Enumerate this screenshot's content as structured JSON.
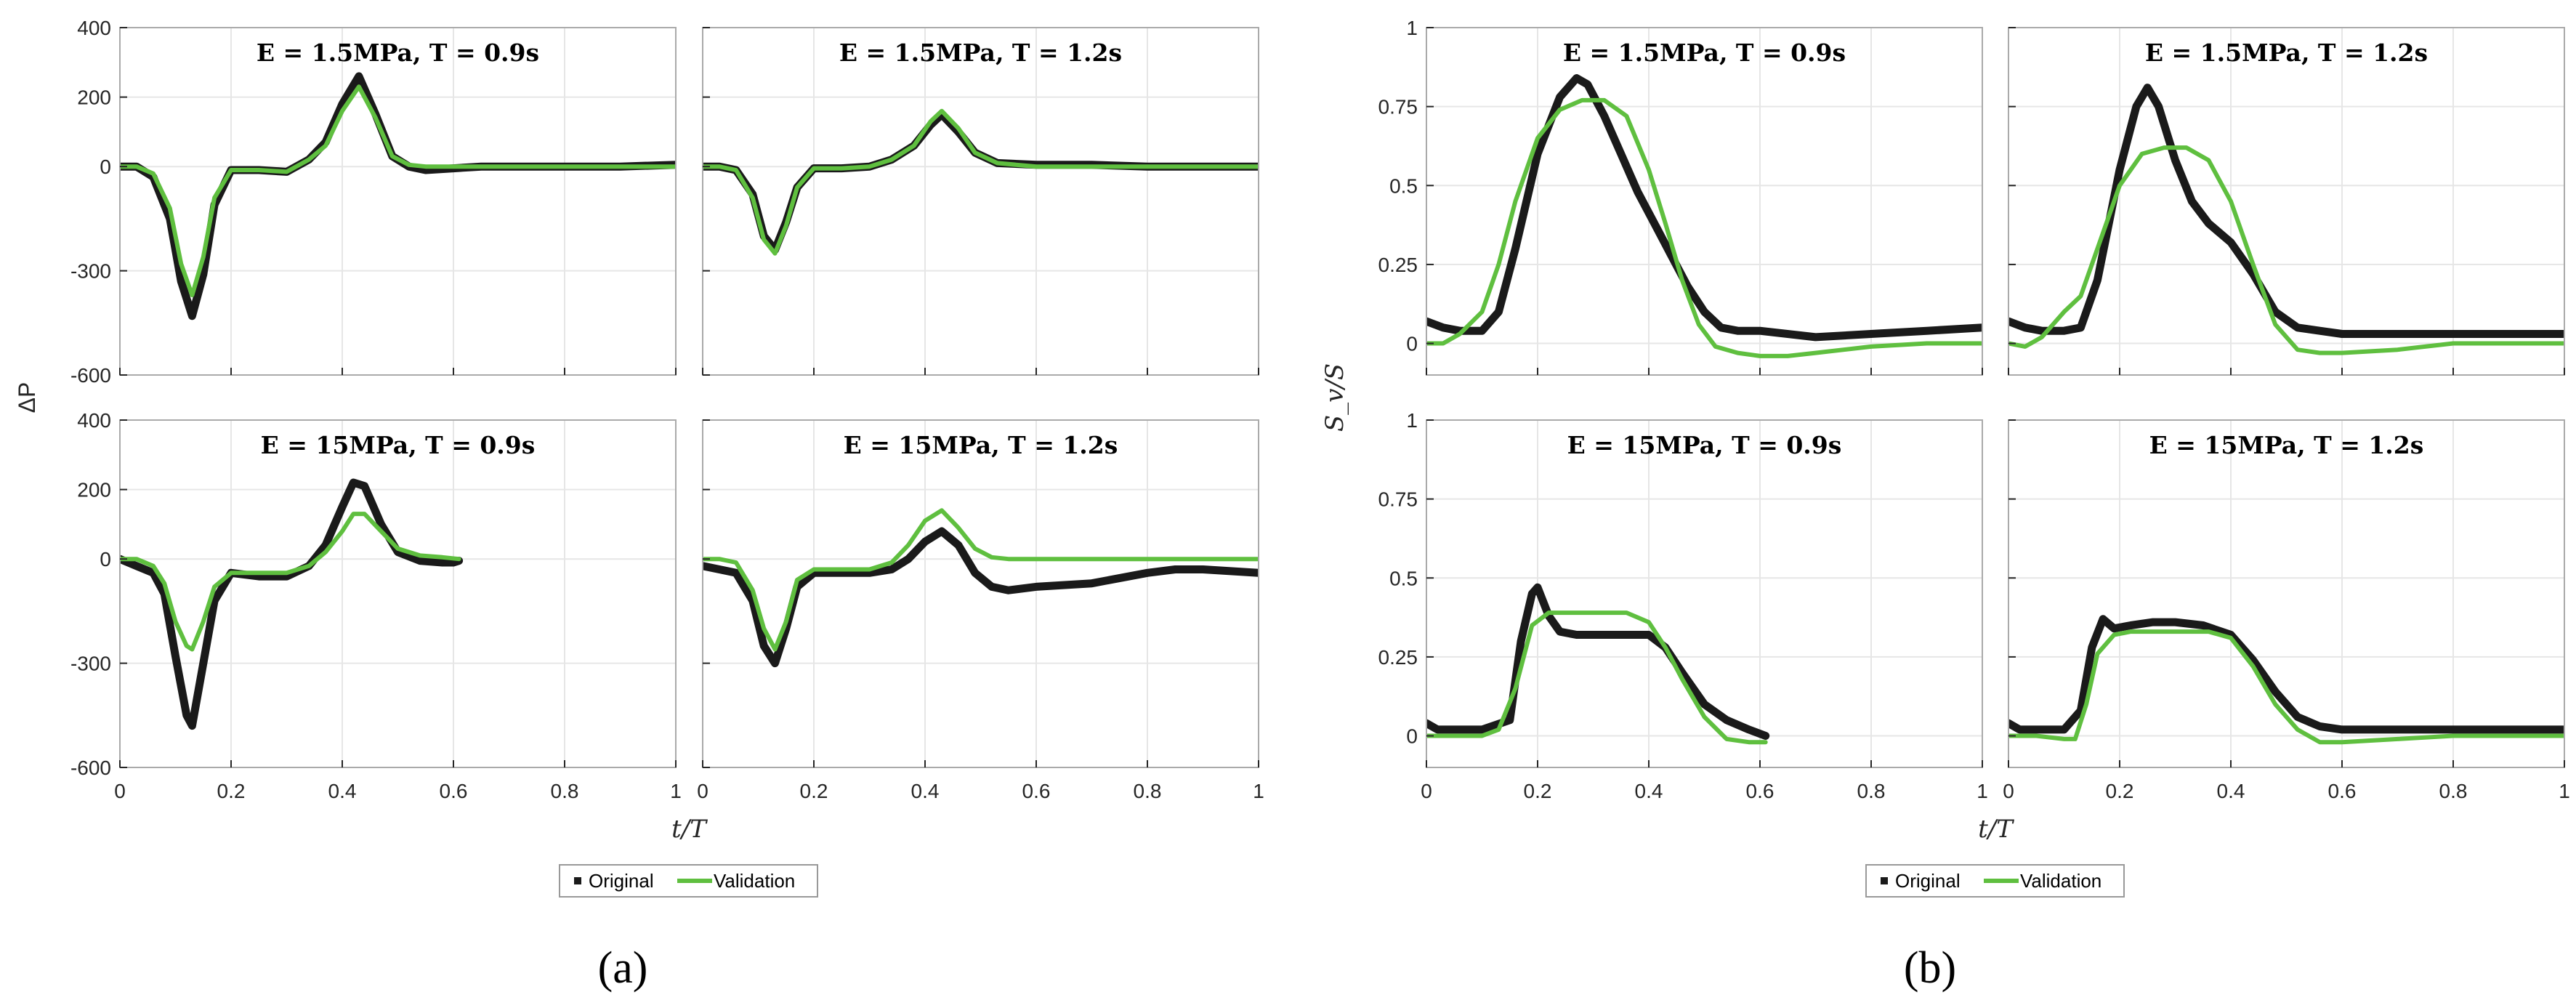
{
  "colors": {
    "original": "#1a1a1a",
    "validation": "#5fbf3f",
    "grid": "#e6e6e6",
    "axis": "#262626"
  },
  "figure_labels": [
    "(a)",
    "(b)"
  ],
  "groups": [
    {
      "xlabel": "t/T",
      "ylabel": "ΔP",
      "ylim": [
        -600,
        400
      ],
      "yticks": [
        -600,
        -300,
        0,
        200,
        400
      ],
      "xticks": [
        0,
        0.2,
        0.4,
        0.6,
        0.8,
        1
      ],
      "legend": [
        "Original",
        "Validation"
      ]
    },
    {
      "xlabel": "t/T",
      "ylabel": "S_v/S",
      "ylim": [
        -0.1,
        1
      ],
      "yticks": [
        0,
        0.25,
        0.5,
        0.75,
        1
      ],
      "xticks": [
        0,
        0.2,
        0.4,
        0.6,
        0.8,
        1
      ],
      "legend": [
        "Original",
        "Validation"
      ]
    }
  ],
  "chart_data": [
    {
      "type": "line",
      "title": "E = 1.5MPa, T = 0.9s",
      "xlabel": "",
      "ylabel": "ΔP",
      "xlim": [
        0,
        1
      ],
      "ylim": [
        -600,
        400
      ],
      "series": [
        {
          "name": "Original",
          "x": [
            0,
            0.03,
            0.06,
            0.09,
            0.11,
            0.13,
            0.15,
            0.17,
            0.2,
            0.25,
            0.3,
            0.34,
            0.37,
            0.4,
            0.43,
            0.46,
            0.49,
            0.52,
            0.55,
            0.6,
            0.65,
            0.7,
            0.8,
            0.9,
            1.0
          ],
          "y": [
            0,
            0,
            -30,
            -150,
            -330,
            -430,
            -310,
            -110,
            -10,
            -10,
            -15,
            20,
            70,
            180,
            260,
            150,
            30,
            0,
            -10,
            -5,
            0,
            0,
            0,
            0,
            5
          ]
        },
        {
          "name": "Validation",
          "x": [
            0,
            0.03,
            0.06,
            0.09,
            0.11,
            0.13,
            0.15,
            0.17,
            0.2,
            0.25,
            0.3,
            0.34,
            0.37,
            0.4,
            0.43,
            0.46,
            0.49,
            0.52,
            0.55,
            0.6,
            0.7,
            0.8,
            0.9,
            1.0
          ],
          "y": [
            0,
            0,
            -20,
            -120,
            -280,
            -370,
            -260,
            -90,
            -10,
            -10,
            -15,
            20,
            60,
            160,
            230,
            140,
            30,
            5,
            0,
            0,
            0,
            0,
            0,
            0
          ]
        }
      ]
    },
    {
      "type": "line",
      "title": "E = 1.5MPa, T = 1.2s",
      "xlabel": "",
      "ylabel": "",
      "xlim": [
        0,
        1
      ],
      "ylim": [
        -600,
        400
      ],
      "series": [
        {
          "name": "Original",
          "x": [
            0,
            0.03,
            0.06,
            0.09,
            0.11,
            0.13,
            0.15,
            0.17,
            0.2,
            0.25,
            0.3,
            0.34,
            0.38,
            0.41,
            0.43,
            0.46,
            0.49,
            0.53,
            0.6,
            0.7,
            0.8,
            0.9,
            1.0
          ],
          "y": [
            0,
            0,
            -10,
            -80,
            -200,
            -240,
            -160,
            -60,
            -5,
            -5,
            0,
            20,
            60,
            120,
            150,
            100,
            40,
            10,
            5,
            5,
            0,
            0,
            0
          ]
        },
        {
          "name": "Validation",
          "x": [
            0,
            0.03,
            0.06,
            0.09,
            0.11,
            0.13,
            0.15,
            0.17,
            0.2,
            0.25,
            0.3,
            0.34,
            0.38,
            0.41,
            0.43,
            0.46,
            0.49,
            0.53,
            0.6,
            0.7,
            0.8,
            0.9,
            1.0
          ],
          "y": [
            0,
            0,
            -10,
            -90,
            -210,
            -250,
            -170,
            -60,
            -5,
            -5,
            0,
            20,
            60,
            130,
            160,
            110,
            40,
            10,
            0,
            0,
            0,
            0,
            0
          ]
        }
      ]
    },
    {
      "type": "line",
      "title": "E = 15MPa, T = 0.9s",
      "xlabel": "",
      "ylabel": "ΔP",
      "xlim": [
        0,
        1
      ],
      "ylim": [
        -600,
        400
      ],
      "series": [
        {
          "name": "Original",
          "x": [
            0,
            0.03,
            0.06,
            0.08,
            0.1,
            0.12,
            0.13,
            0.15,
            0.17,
            0.2,
            0.25,
            0.3,
            0.34,
            0.37,
            0.4,
            0.42,
            0.44,
            0.47,
            0.5,
            0.54,
            0.58,
            0.6,
            0.61
          ],
          "y": [
            0,
            -20,
            -40,
            -100,
            -280,
            -450,
            -480,
            -300,
            -120,
            -40,
            -50,
            -50,
            -20,
            40,
            150,
            220,
            210,
            100,
            20,
            -5,
            -10,
            -10,
            -5
          ]
        },
        {
          "name": "Validation",
          "x": [
            0,
            0.03,
            0.06,
            0.08,
            0.1,
            0.12,
            0.13,
            0.15,
            0.17,
            0.2,
            0.25,
            0.3,
            0.34,
            0.37,
            0.4,
            0.42,
            0.44,
            0.47,
            0.5,
            0.54,
            0.58,
            0.61
          ],
          "y": [
            0,
            0,
            -20,
            -70,
            -180,
            -250,
            -260,
            -180,
            -80,
            -40,
            -40,
            -40,
            -20,
            20,
            80,
            130,
            130,
            80,
            30,
            10,
            5,
            0
          ]
        }
      ]
    },
    {
      "type": "line",
      "title": "E = 15MPa, T = 1.2s",
      "xlabel": "",
      "ylabel": "",
      "xlim": [
        0,
        1
      ],
      "ylim": [
        -600,
        400
      ],
      "series": [
        {
          "name": "Original",
          "x": [
            0,
            0.03,
            0.06,
            0.09,
            0.11,
            0.13,
            0.15,
            0.17,
            0.2,
            0.25,
            0.3,
            0.34,
            0.37,
            0.4,
            0.43,
            0.46,
            0.49,
            0.52,
            0.55,
            0.6,
            0.7,
            0.8,
            0.85,
            0.9,
            1.0
          ],
          "y": [
            -20,
            -30,
            -40,
            -120,
            -250,
            -300,
            -200,
            -80,
            -40,
            -40,
            -40,
            -30,
            0,
            50,
            80,
            40,
            -40,
            -80,
            -90,
            -80,
            -70,
            -40,
            -30,
            -30,
            -40
          ]
        },
        {
          "name": "Validation",
          "x": [
            0,
            0.03,
            0.06,
            0.09,
            0.11,
            0.13,
            0.15,
            0.17,
            0.2,
            0.25,
            0.3,
            0.34,
            0.37,
            0.4,
            0.43,
            0.46,
            0.49,
            0.52,
            0.55,
            0.6,
            0.7,
            0.8,
            0.9,
            1.0
          ],
          "y": [
            0,
            0,
            -10,
            -90,
            -200,
            -260,
            -180,
            -60,
            -30,
            -30,
            -30,
            -10,
            40,
            110,
            140,
            90,
            30,
            5,
            0,
            0,
            0,
            0,
            0,
            0
          ]
        }
      ]
    },
    {
      "type": "line",
      "title": "E = 1.5MPa, T = 0.9s",
      "xlabel": "",
      "ylabel": "S_v/S",
      "xlim": [
        0,
        1
      ],
      "ylim": [
        -0.1,
        1
      ],
      "series": [
        {
          "name": "Original",
          "x": [
            0,
            0.03,
            0.06,
            0.1,
            0.13,
            0.16,
            0.2,
            0.24,
            0.27,
            0.29,
            0.32,
            0.35,
            0.38,
            0.41,
            0.44,
            0.47,
            0.5,
            0.53,
            0.56,
            0.6,
            0.7,
            0.8,
            0.9,
            1.0
          ],
          "y": [
            0.07,
            0.05,
            0.04,
            0.04,
            0.1,
            0.3,
            0.6,
            0.78,
            0.84,
            0.82,
            0.72,
            0.6,
            0.48,
            0.38,
            0.28,
            0.18,
            0.1,
            0.05,
            0.04,
            0.04,
            0.02,
            0.03,
            0.04,
            0.05
          ]
        },
        {
          "name": "Validation",
          "x": [
            0,
            0.03,
            0.06,
            0.1,
            0.13,
            0.16,
            0.2,
            0.24,
            0.28,
            0.32,
            0.36,
            0.4,
            0.43,
            0.46,
            0.49,
            0.52,
            0.56,
            0.6,
            0.65,
            0.7,
            0.8,
            0.9,
            1.0
          ],
          "y": [
            0.0,
            0.0,
            0.03,
            0.1,
            0.25,
            0.45,
            0.65,
            0.74,
            0.77,
            0.77,
            0.72,
            0.55,
            0.38,
            0.2,
            0.06,
            -0.01,
            -0.03,
            -0.04,
            -0.04,
            -0.03,
            -0.01,
            0.0,
            0.0
          ]
        }
      ]
    },
    {
      "type": "line",
      "title": "E = 1.5MPa, T = 1.2s",
      "xlabel": "",
      "ylabel": "",
      "xlim": [
        0,
        1
      ],
      "ylim": [
        -0.1,
        1
      ],
      "series": [
        {
          "name": "Original",
          "x": [
            0,
            0.03,
            0.06,
            0.1,
            0.13,
            0.16,
            0.2,
            0.23,
            0.25,
            0.27,
            0.3,
            0.33,
            0.36,
            0.4,
            0.44,
            0.48,
            0.52,
            0.56,
            0.6,
            0.7,
            0.8,
            0.9,
            1.0
          ],
          "y": [
            0.07,
            0.05,
            0.04,
            0.04,
            0.05,
            0.2,
            0.55,
            0.75,
            0.81,
            0.75,
            0.58,
            0.45,
            0.38,
            0.32,
            0.22,
            0.1,
            0.05,
            0.04,
            0.03,
            0.03,
            0.03,
            0.03,
            0.03
          ]
        },
        {
          "name": "Validation",
          "x": [
            0,
            0.03,
            0.06,
            0.1,
            0.13,
            0.16,
            0.2,
            0.24,
            0.28,
            0.32,
            0.36,
            0.4,
            0.44,
            0.48,
            0.52,
            0.56,
            0.6,
            0.7,
            0.8,
            0.9,
            1.0
          ],
          "y": [
            0.0,
            -0.01,
            0.02,
            0.1,
            0.15,
            0.3,
            0.5,
            0.6,
            0.62,
            0.62,
            0.58,
            0.45,
            0.25,
            0.06,
            -0.02,
            -0.03,
            -0.03,
            -0.02,
            0.0,
            0.0,
            0.0
          ]
        }
      ]
    },
    {
      "type": "line",
      "title": "E = 15MPa, T = 0.9s",
      "xlabel": "",
      "ylabel": "S_v/S",
      "xlim": [
        0,
        1
      ],
      "ylim": [
        -0.1,
        1
      ],
      "series": [
        {
          "name": "Original",
          "x": [
            0,
            0.02,
            0.05,
            0.1,
            0.15,
            0.17,
            0.19,
            0.2,
            0.22,
            0.24,
            0.27,
            0.3,
            0.35,
            0.4,
            0.43,
            0.46,
            0.5,
            0.54,
            0.58,
            0.61
          ],
          "y": [
            0.04,
            0.02,
            0.02,
            0.02,
            0.05,
            0.3,
            0.45,
            0.47,
            0.38,
            0.33,
            0.32,
            0.32,
            0.32,
            0.32,
            0.28,
            0.2,
            0.1,
            0.05,
            0.02,
            0.0
          ]
        },
        {
          "name": "Validation",
          "x": [
            0,
            0.05,
            0.1,
            0.13,
            0.16,
            0.19,
            0.22,
            0.26,
            0.3,
            0.36,
            0.4,
            0.43,
            0.46,
            0.5,
            0.54,
            0.58,
            0.61
          ],
          "y": [
            0.0,
            0.0,
            0.0,
            0.02,
            0.15,
            0.35,
            0.39,
            0.39,
            0.39,
            0.39,
            0.36,
            0.28,
            0.18,
            0.06,
            -0.01,
            -0.02,
            -0.02
          ]
        }
      ]
    },
    {
      "type": "line",
      "title": "E = 15MPa, T = 1.2s",
      "xlabel": "",
      "ylabel": "",
      "xlim": [
        0,
        1
      ],
      "ylim": [
        -0.1,
        1
      ],
      "series": [
        {
          "name": "Original",
          "x": [
            0,
            0.02,
            0.05,
            0.1,
            0.13,
            0.15,
            0.17,
            0.19,
            0.22,
            0.26,
            0.3,
            0.35,
            0.4,
            0.44,
            0.48,
            0.52,
            0.56,
            0.6,
            0.7,
            0.8,
            0.9,
            1.0
          ],
          "y": [
            0.04,
            0.02,
            0.02,
            0.02,
            0.08,
            0.28,
            0.37,
            0.34,
            0.35,
            0.36,
            0.36,
            0.35,
            0.32,
            0.24,
            0.14,
            0.06,
            0.03,
            0.02,
            0.02,
            0.02,
            0.02,
            0.02
          ]
        },
        {
          "name": "Validation",
          "x": [
            0,
            0.05,
            0.1,
            0.12,
            0.14,
            0.16,
            0.19,
            0.22,
            0.3,
            0.36,
            0.4,
            0.44,
            0.48,
            0.52,
            0.56,
            0.6,
            0.7,
            0.8,
            0.9,
            1.0
          ],
          "y": [
            0.0,
            0.0,
            -0.01,
            -0.01,
            0.1,
            0.26,
            0.32,
            0.33,
            0.33,
            0.33,
            0.31,
            0.22,
            0.1,
            0.02,
            -0.02,
            -0.02,
            -0.01,
            0.0,
            0.0,
            0.0
          ]
        }
      ]
    }
  ]
}
